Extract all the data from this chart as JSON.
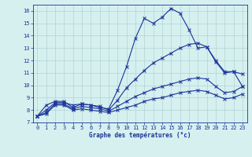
{
  "xlabel": "Graphe des températures (°c)",
  "background_color": "#d6f0f0",
  "line_color": "#1a3399",
  "ylim": [
    7,
    16.5
  ],
  "xlim": [
    -0.5,
    23.5
  ],
  "yticks": [
    7,
    8,
    9,
    10,
    11,
    12,
    13,
    14,
    15,
    16
  ],
  "xticks": [
    0,
    1,
    2,
    3,
    4,
    5,
    6,
    7,
    8,
    9,
    10,
    11,
    12,
    13,
    14,
    15,
    16,
    17,
    18,
    19,
    20,
    21,
    22,
    23
  ],
  "curves": [
    [
      7.5,
      8.4,
      8.7,
      8.7,
      8.2,
      8.5,
      8.4,
      8.2,
      8.1,
      9.6,
      11.5,
      13.8,
      15.4,
      15.0,
      15.5,
      16.2,
      15.8,
      14.5,
      13.0,
      13.1,
      11.9,
      11.0,
      11.1,
      9.9
    ],
    [
      7.5,
      8.0,
      8.6,
      8.6,
      8.4,
      8.5,
      8.4,
      8.3,
      8.0,
      8.8,
      9.8,
      10.5,
      11.2,
      11.8,
      12.2,
      12.6,
      13.0,
      13.3,
      13.4,
      13.1,
      12.0,
      11.1,
      11.1,
      10.9
    ],
    [
      7.5,
      7.8,
      8.5,
      8.5,
      8.1,
      8.3,
      8.2,
      8.1,
      7.9,
      8.3,
      8.7,
      9.1,
      9.4,
      9.7,
      9.9,
      10.1,
      10.3,
      10.5,
      10.6,
      10.5,
      9.9,
      9.4,
      9.5,
      9.9
    ],
    [
      7.5,
      7.7,
      8.4,
      8.4,
      8.0,
      8.1,
      8.0,
      7.9,
      7.8,
      8.0,
      8.2,
      8.4,
      8.7,
      8.9,
      9.0,
      9.2,
      9.4,
      9.5,
      9.6,
      9.5,
      9.2,
      8.9,
      9.0,
      9.3
    ]
  ],
  "xlabel_fontsize": 5.5,
  "tick_fontsize": 5.0
}
